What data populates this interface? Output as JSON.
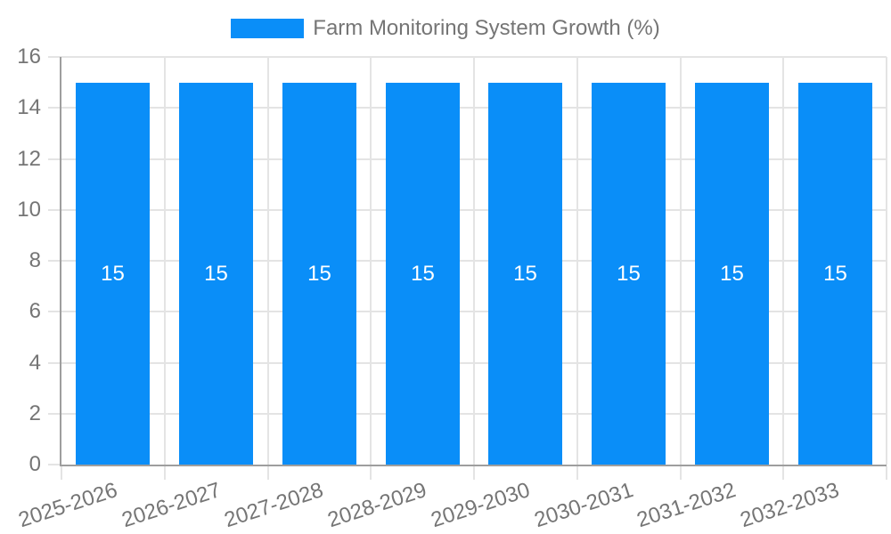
{
  "chart_data": {
    "type": "bar",
    "legend": {
      "label": "Farm Monitoring System Growth (%)",
      "position": "top"
    },
    "categories": [
      "2025-2026",
      "2026-2027",
      "2027-2028",
      "2028-2029",
      "2029-2030",
      "2030-2031",
      "2031-2032",
      "2032-2033"
    ],
    "series": [
      {
        "name": "Farm Monitoring System Growth (%)",
        "values": [
          15,
          15,
          15,
          15,
          15,
          15,
          15,
          15
        ]
      }
    ],
    "bar_value_labels": [
      "15",
      "15",
      "15",
      "15",
      "15",
      "15",
      "15",
      "15"
    ],
    "ylim": [
      0,
      16
    ],
    "ytick_step": 2,
    "ytick_labels": [
      "0",
      "2",
      "4",
      "6",
      "8",
      "10",
      "12",
      "14",
      "16"
    ],
    "grid": true,
    "legend_visible": true,
    "colors": {
      "bar": "#0a8ef8",
      "grid": "#e4e4e4",
      "axis": "#9e9e9e",
      "tick_label": "#757575",
      "bar_label": "#ffffff",
      "legend_label": "#757575"
    }
  }
}
